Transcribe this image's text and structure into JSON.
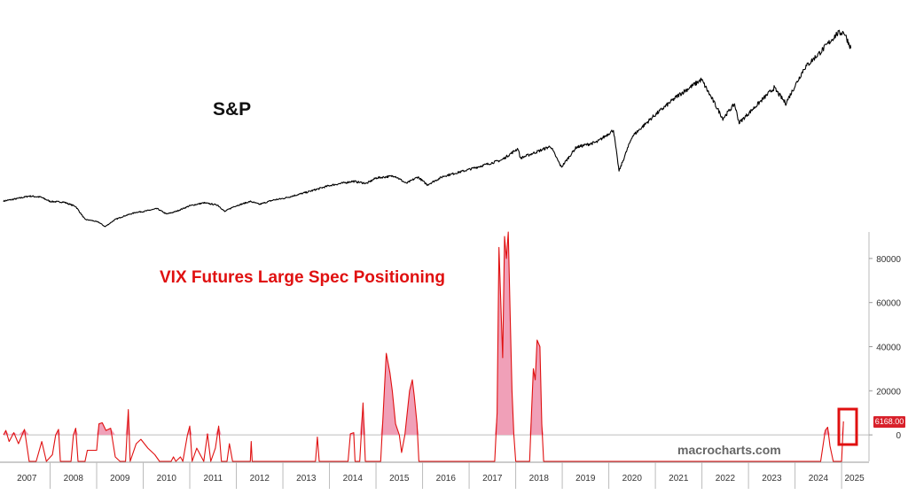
{
  "chart_data": [
    {
      "type": "line",
      "title": "S&P",
      "series": [
        {
          "color": "#000000",
          "points": [
            [
              2007.0,
              1410
            ],
            [
              2007.3,
              1480
            ],
            [
              2007.55,
              1550
            ],
            [
              2007.8,
              1520
            ],
            [
              2008.0,
              1400
            ],
            [
              2008.3,
              1380
            ],
            [
              2008.55,
              1260
            ],
            [
              2008.75,
              900
            ],
            [
              2008.9,
              870
            ],
            [
              2009.05,
              820
            ],
            [
              2009.18,
              700
            ],
            [
              2009.4,
              900
            ],
            [
              2009.6,
              1000
            ],
            [
              2009.85,
              1100
            ],
            [
              2010.0,
              1120
            ],
            [
              2010.3,
              1200
            ],
            [
              2010.5,
              1050
            ],
            [
              2010.7,
              1120
            ],
            [
              2011.0,
              1280
            ],
            [
              2011.3,
              1360
            ],
            [
              2011.6,
              1300
            ],
            [
              2011.75,
              1120
            ],
            [
              2011.95,
              1260
            ],
            [
              2012.3,
              1400
            ],
            [
              2012.5,
              1320
            ],
            [
              2012.8,
              1440
            ],
            [
              2013.0,
              1480
            ],
            [
              2013.5,
              1650
            ],
            [
              2014.0,
              1840
            ],
            [
              2014.5,
              1960
            ],
            [
              2014.8,
              1900
            ],
            [
              2015.0,
              2050
            ],
            [
              2015.4,
              2110
            ],
            [
              2015.65,
              1900
            ],
            [
              2015.9,
              2080
            ],
            [
              2016.1,
              1860
            ],
            [
              2016.45,
              2100
            ],
            [
              2016.9,
              2250
            ],
            [
              2017.3,
              2400
            ],
            [
              2017.7,
              2550
            ],
            [
              2018.05,
              2870
            ],
            [
              2018.1,
              2600
            ],
            [
              2018.5,
              2800
            ],
            [
              2018.75,
              2930
            ],
            [
              2018.98,
              2350
            ],
            [
              2019.3,
              2900
            ],
            [
              2019.75,
              3050
            ],
            [
              2020.1,
              3380
            ],
            [
              2020.22,
              2240
            ],
            [
              2020.5,
              3200
            ],
            [
              2020.95,
              3750
            ],
            [
              2021.5,
              4350
            ],
            [
              2021.99,
              4780
            ],
            [
              2022.45,
              3700
            ],
            [
              2022.7,
              4100
            ],
            [
              2022.8,
              3580
            ],
            [
              2023.2,
              4100
            ],
            [
              2023.55,
              4550
            ],
            [
              2023.8,
              4120
            ],
            [
              2024.2,
              5100
            ],
            [
              2024.55,
              5550
            ],
            [
              2024.9,
              6050
            ],
            [
              2025.05,
              6100
            ],
            [
              2025.2,
              5650
            ]
          ]
        }
      ],
      "ylim": [
        650,
        6300
      ],
      "grid": false
    },
    {
      "type": "area",
      "title": "VIX Futures Large Spec Positioning",
      "x_ticks": [
        "2007",
        "2008",
        "2009",
        "2010",
        "2011",
        "2012",
        "2013",
        "2014",
        "2015",
        "2016",
        "2017",
        "2018",
        "2019",
        "2020",
        "2021",
        "2022",
        "2023",
        "2024",
        "2025"
      ],
      "y_ticks": [
        "0",
        "20000",
        "40000",
        "60000",
        "80000"
      ],
      "ylim": [
        -12000,
        92000
      ],
      "last_value_label": "6168.00",
      "watermark": "macrocharts.com",
      "series": [
        {
          "color": "#e01010",
          "fill": "#f0a0b8",
          "points": [
            [
              2007.0,
              0
            ],
            [
              2007.05,
              2000
            ],
            [
              2007.12,
              -3000
            ],
            [
              2007.22,
              1000
            ],
            [
              2007.32,
              -4000
            ],
            [
              2007.45,
              2500
            ],
            [
              2007.55,
              -12000
            ],
            [
              2007.7,
              -12000
            ],
            [
              2007.82,
              -3000
            ],
            [
              2007.92,
              -12000
            ],
            [
              2008.05,
              -9000
            ],
            [
              2008.12,
              0
            ],
            [
              2008.18,
              2500
            ],
            [
              2008.22,
              -12000
            ],
            [
              2008.45,
              -12000
            ],
            [
              2008.5,
              0
            ],
            [
              2008.55,
              3000
            ],
            [
              2008.6,
              -12000
            ],
            [
              2008.75,
              -12000
            ],
            [
              2008.8,
              -7000
            ],
            [
              2009.0,
              -7000
            ],
            [
              2009.05,
              5000
            ],
            [
              2009.12,
              5500
            ],
            [
              2009.2,
              2000
            ],
            [
              2009.3,
              3000
            ],
            [
              2009.4,
              -10000
            ],
            [
              2009.5,
              -12000
            ],
            [
              2009.62,
              -12000
            ],
            [
              2009.68,
              11500
            ],
            [
              2009.72,
              -12000
            ],
            [
              2009.85,
              -4000
            ],
            [
              2009.95,
              -2000
            ],
            [
              2010.1,
              -6000
            ],
            [
              2010.25,
              -9000
            ],
            [
              2010.35,
              -12000
            ],
            [
              2010.6,
              -12000
            ],
            [
              2010.65,
              -10000
            ],
            [
              2010.7,
              -12000
            ],
            [
              2010.8,
              -10000
            ],
            [
              2010.85,
              -12000
            ],
            [
              2010.95,
              0
            ],
            [
              2011.0,
              4000
            ],
            [
              2011.05,
              -12000
            ],
            [
              2011.15,
              -6000
            ],
            [
              2011.3,
              -12000
            ],
            [
              2011.38,
              500
            ],
            [
              2011.45,
              -12000
            ],
            [
              2011.55,
              -6000
            ],
            [
              2011.62,
              4000
            ],
            [
              2011.68,
              -12000
            ],
            [
              2011.8,
              -12000
            ],
            [
              2011.85,
              -4000
            ],
            [
              2011.92,
              -12000
            ],
            [
              2012.3,
              -12000
            ],
            [
              2012.32,
              -3000
            ],
            [
              2012.34,
              -12000
            ],
            [
              2013.7,
              -12000
            ],
            [
              2013.74,
              -1000
            ],
            [
              2013.78,
              -12000
            ],
            [
              2014.4,
              -12000
            ],
            [
              2014.45,
              500
            ],
            [
              2014.52,
              1000
            ],
            [
              2014.55,
              -12000
            ],
            [
              2014.65,
              -12000
            ],
            [
              2014.72,
              14500
            ],
            [
              2014.77,
              -12000
            ],
            [
              2015.1,
              -12000
            ],
            [
              2015.15,
              8000
            ],
            [
              2015.22,
              37000
            ],
            [
              2015.3,
              28000
            ],
            [
              2015.35,
              20000
            ],
            [
              2015.42,
              5000
            ],
            [
              2015.5,
              0
            ],
            [
              2015.55,
              -8000
            ],
            [
              2015.62,
              0
            ],
            [
              2015.72,
              20000
            ],
            [
              2015.78,
              25000
            ],
            [
              2015.82,
              18000
            ],
            [
              2015.88,
              5000
            ],
            [
              2015.92,
              -12000
            ],
            [
              2017.55,
              -12000
            ],
            [
              2017.6,
              10000
            ],
            [
              2017.64,
              85000
            ],
            [
              2017.68,
              60000
            ],
            [
              2017.72,
              35000
            ],
            [
              2017.76,
              90000
            ],
            [
              2017.8,
              80000
            ],
            [
              2017.84,
              92000
            ],
            [
              2017.88,
              55000
            ],
            [
              2017.92,
              20000
            ],
            [
              2017.96,
              0
            ],
            [
              2018.0,
              -12000
            ],
            [
              2018.3,
              -12000
            ],
            [
              2018.34,
              10000
            ],
            [
              2018.38,
              30000
            ],
            [
              2018.42,
              25000
            ],
            [
              2018.46,
              43000
            ],
            [
              2018.52,
              40000
            ],
            [
              2018.56,
              5000
            ],
            [
              2018.6,
              -12000
            ],
            [
              2024.55,
              -12000
            ],
            [
              2024.6,
              -5000
            ],
            [
              2024.65,
              2000
            ],
            [
              2024.7,
              3500
            ],
            [
              2024.75,
              -5000
            ],
            [
              2024.82,
              -12000
            ],
            [
              2025.0,
              -12000
            ],
            [
              2025.04,
              6168
            ]
          ]
        }
      ],
      "grid": false
    }
  ]
}
